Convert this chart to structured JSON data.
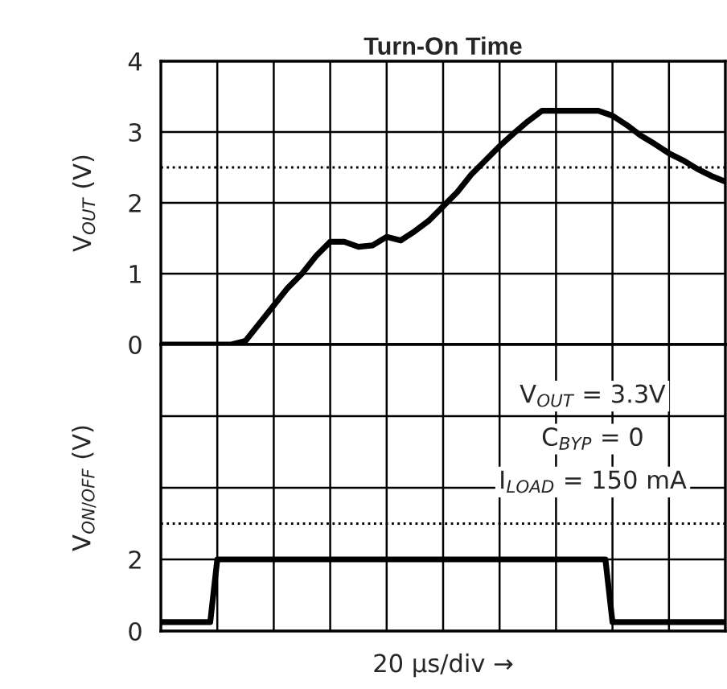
{
  "chart_data": [
    {
      "type": "line",
      "title": "Turn-On Time",
      "ylabel": "V$_{OUT}$ (V)",
      "categories": [
        null,
        null,
        null,
        null,
        null,
        null,
        null,
        null,
        null,
        null,
        null,
        null,
        null,
        null,
        null,
        null,
        null,
        null,
        null,
        null,
        null,
        null,
        null,
        null,
        null,
        null,
        null,
        null,
        null,
        null,
        null,
        null,
        null,
        null,
        null,
        null,
        null,
        null,
        null,
        null,
        null
      ],
      "ylim": [
        0,
        4
      ],
      "yticks": [
        0,
        1,
        2,
        3,
        4
      ],
      "grid": true,
      "tick_labels": "y",
      "series": [
        {
          "color": "#000000",
          "values": [
            0,
            0,
            0,
            0,
            0,
            0,
            0.05,
            0.3,
            0.55,
            0.8,
            1.0,
            1.25,
            1.45,
            1.45,
            1.38,
            1.4,
            1.52,
            1.47,
            1.6,
            1.75,
            1.95,
            2.15,
            2.4,
            2.6,
            2.8,
            2.98,
            3.15,
            3.3,
            3.3,
            3.3,
            3.3,
            3.3,
            3.23,
            3.1,
            2.95,
            2.83,
            2.7,
            2.6,
            2.48,
            2.38,
            2.3
          ]
        }
      ],
      "ref_lines": [
        {
          "axis": "y",
          "value": 2.5,
          "color": "#000000",
          "line_style": "dotted"
        }
      ]
    },
    {
      "type": "line",
      "ylabel": "V$_{ON/OFF}$ (V)",
      "xlabel": "20 µs/div →",
      "categories": [
        null,
        null,
        null,
        null,
        null,
        null,
        null,
        null,
        null,
        null,
        null,
        null,
        null,
        null,
        null,
        null,
        null,
        null,
        null,
        null,
        null,
        null,
        null,
        null,
        null,
        null,
        null,
        null,
        null,
        null,
        null,
        null,
        null,
        null,
        null,
        null,
        null,
        null,
        null,
        null,
        null,
        null,
        null,
        null,
        null,
        null,
        null,
        null,
        null,
        null,
        null,
        null,
        null,
        null,
        null,
        null,
        null,
        null,
        null,
        null,
        null,
        null,
        null,
        null,
        null,
        null,
        null,
        null,
        null,
        null,
        null,
        null,
        null,
        null,
        null,
        null,
        null,
        null,
        null,
        null,
        null
      ],
      "ylim": [
        0,
        8
      ],
      "yticks": [
        0,
        2,
        {
          "value": 4,
          "label": null
        },
        {
          "value": 6,
          "label": null
        }
      ],
      "grid": true,
      "tick_labels": "y",
      "series": [
        {
          "color": "#000000",
          "values": [
            0.25,
            0.25,
            0.25,
            0.25,
            0.25,
            0.25,
            0.25,
            0.25,
            2,
            2,
            2,
            2,
            2,
            2,
            2,
            2,
            2,
            2,
            2,
            2,
            2,
            2,
            2,
            2,
            2,
            2,
            2,
            2,
            2,
            2,
            2,
            2,
            2,
            2,
            2,
            2,
            2,
            2,
            2,
            2,
            2,
            2,
            2,
            2,
            2,
            2,
            2,
            2,
            2,
            2,
            2,
            2,
            2,
            2,
            2,
            2,
            2,
            2,
            2,
            2,
            2,
            2,
            2,
            2,
            0.25,
            0.25,
            0.25,
            0.25,
            0.25,
            0.25,
            0.25,
            0.25,
            0.25,
            0.25,
            0.25,
            0.25,
            0.25,
            0.25,
            0.25,
            0.25,
            0.25
          ]
        }
      ],
      "ref_lines": [
        {
          "axis": "y",
          "value": 3,
          "color": "#000000",
          "line_style": "dotted"
        }
      ],
      "annotations": [
        "V$_{OUT}$ = 3.3V",
        "C$_{BYP}$ = 0",
        "I$_{LOAD}$ = 150 mA"
      ]
    }
  ]
}
